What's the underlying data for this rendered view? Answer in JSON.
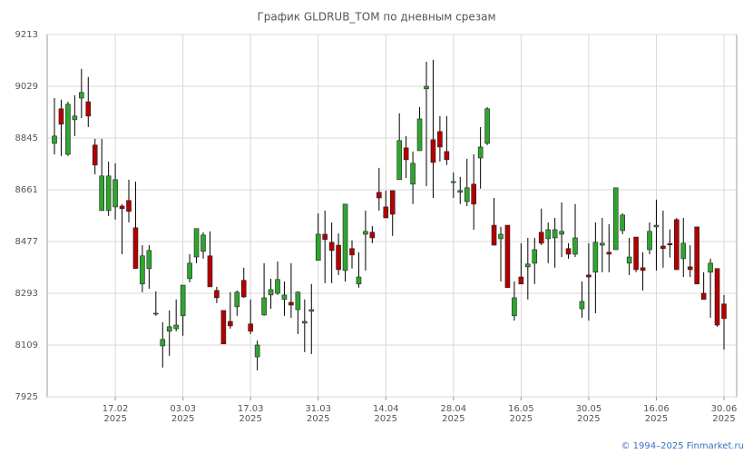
{
  "chart_data": {
    "type": "candlestick",
    "title": "График GLDRUB_TOM по дневным срезам",
    "categories": [
      null,
      null,
      null,
      null,
      null,
      null,
      null,
      null,
      null,
      [
        "17.02",
        "2025"
      ],
      null,
      null,
      null,
      null,
      null,
      null,
      null,
      null,
      null,
      [
        "03.03",
        "2025"
      ],
      null,
      null,
      null,
      null,
      null,
      null,
      null,
      null,
      null,
      [
        "17.03",
        "2025"
      ],
      null,
      null,
      null,
      null,
      null,
      null,
      null,
      null,
      null,
      [
        "31.03",
        "2025"
      ],
      null,
      null,
      null,
      null,
      null,
      null,
      null,
      null,
      null,
      [
        "14.04",
        "2025"
      ],
      null,
      null,
      null,
      null,
      null,
      null,
      null,
      null,
      null,
      [
        "28.04",
        "2025"
      ],
      null,
      null,
      null,
      null,
      null,
      null,
      null,
      null,
      null,
      [
        "16.05",
        "2025"
      ],
      null,
      null,
      null,
      null,
      null,
      null,
      null,
      null,
      null,
      [
        "30.05",
        "2025"
      ],
      null,
      null,
      null,
      null,
      null,
      null,
      null,
      null,
      null,
      [
        "16.06",
        "2025"
      ],
      null,
      null,
      null,
      null,
      null,
      null,
      null,
      null,
      null,
      [
        "30.06",
        "2025"
      ]
    ],
    "open": [
      8826,
      8949,
      8787,
      8910,
      8987,
      8974,
      8820,
      8587,
      8587,
      8600,
      8603,
      8623,
      8526,
      8326,
      8381,
      8219,
      8106,
      8158,
      8167,
      8213,
      8345,
      8422,
      8442,
      8426,
      8303,
      8232,
      8193,
      8245,
      8339,
      8184,
      8067,
      8216,
      8287,
      8293,
      8271,
      8261,
      8235,
      8187,
      8229,
      8410,
      8503,
      8474,
      8464,
      8374,
      8452,
      8326,
      8503,
      8510,
      8652,
      8600,
      8658,
      8697,
      8810,
      8681,
      8800,
      9020,
      8839,
      8868,
      8797,
      8687,
      8652,
      8619,
      8681,
      8774,
      8826,
      8535,
      8487,
      8535,
      8213,
      8351,
      8387,
      8400,
      8510,
      8487,
      8490,
      8503,
      8452,
      8432,
      8238,
      8358,
      8368,
      8464,
      8439,
      8448,
      8516,
      8400,
      8493,
      8384,
      8448,
      8529,
      8461,
      8470,
      8555,
      8416,
      8387,
      8529,
      8293,
      8368,
      8381,
      8255
    ],
    "high": [
      8987,
      8981,
      8974,
      8997,
      9091,
      9062,
      8842,
      8842,
      8761,
      8755,
      8610,
      8697,
      8690,
      8464,
      8464,
      8300,
      8190,
      8232,
      8271,
      8322,
      8432,
      8523,
      8510,
      8513,
      8316,
      8232,
      8297,
      8303,
      8384,
      8271,
      8125,
      8400,
      8345,
      8406,
      8335,
      8400,
      8300,
      8271,
      8326,
      8577,
      8587,
      8545,
      8506,
      8610,
      8481,
      8439,
      8587,
      8532,
      8739,
      8658,
      8658,
      8933,
      8852,
      8797,
      8955,
      9116,
      9123,
      8923,
      8923,
      8723,
      8707,
      8771,
      8787,
      8884,
      8955,
      8632,
      8529,
      8535,
      8335,
      8471,
      8490,
      8490,
      8594,
      8545,
      8561,
      8616,
      8471,
      8610,
      8335,
      8471,
      8545,
      8561,
      8539,
      8668,
      8577,
      8490,
      8493,
      8439,
      8545,
      8626,
      8587,
      8520,
      8561,
      8561,
      8464,
      8529,
      8368,
      8416,
      8381,
      8287
    ],
    "low": [
      8787,
      8781,
      8781,
      8852,
      8916,
      8884,
      8716,
      8587,
      8568,
      8555,
      8432,
      8545,
      8381,
      8297,
      8309,
      8213,
      8029,
      8071,
      8158,
      8142,
      8332,
      8400,
      8416,
      8316,
      8258,
      8113,
      8167,
      8213,
      8277,
      8148,
      8019,
      8213,
      8238,
      8287,
      8213,
      8206,
      8148,
      8084,
      8077,
      8410,
      8329,
      8329,
      8358,
      8335,
      8381,
      8313,
      8374,
      8471,
      8587,
      8561,
      8497,
      8697,
      8703,
      8610,
      8800,
      8674,
      8632,
      8761,
      8749,
      8632,
      8610,
      8603,
      8519,
      8665,
      8820,
      8464,
      8335,
      8313,
      8196,
      8326,
      8271,
      8326,
      8464,
      8400,
      8384,
      8422,
      8416,
      8422,
      8206,
      8196,
      8222,
      8368,
      8368,
      8448,
      8503,
      8358,
      8368,
      8303,
      8432,
      8374,
      8384,
      8420,
      8377,
      8351,
      8351,
      8326,
      8271,
      8206,
      8174,
      8093
    ],
    "close": [
      8852,
      8894,
      8965,
      8923,
      9007,
      8923,
      8749,
      8710,
      8710,
      8697,
      8594,
      8584,
      8381,
      8426,
      8445,
      8222,
      8129,
      8174,
      8180,
      8322,
      8400,
      8523,
      8500,
      8316,
      8277,
      8113,
      8177,
      8297,
      8280,
      8158,
      8109,
      8277,
      8306,
      8342,
      8287,
      8251,
      8297,
      8193,
      8235,
      8503,
      8484,
      8445,
      8377,
      8610,
      8429,
      8351,
      8513,
      8490,
      8632,
      8561,
      8574,
      8836,
      8768,
      8755,
      8913,
      9029,
      8758,
      8813,
      8768,
      8690,
      8658,
      8668,
      8610,
      8813,
      8949,
      8464,
      8503,
      8313,
      8277,
      8326,
      8397,
      8448,
      8471,
      8519,
      8519,
      8513,
      8432,
      8490,
      8264,
      8351,
      8474,
      8471,
      8432,
      8668,
      8571,
      8422,
      8377,
      8374,
      8513,
      8535,
      8452,
      8465,
      8377,
      8471,
      8377,
      8326,
      8271,
      8400,
      8180,
      8203
    ],
    "up_color": "#2ea62e",
    "down_color": "#b40000",
    "ylim": [
      7925,
      9213
    ],
    "yticks": [
      7925,
      8109,
      8293,
      8477,
      8661,
      8845,
      9029,
      9213
    ],
    "grid": true
  },
  "source": "© 1994–2025 Finmarket.ru"
}
